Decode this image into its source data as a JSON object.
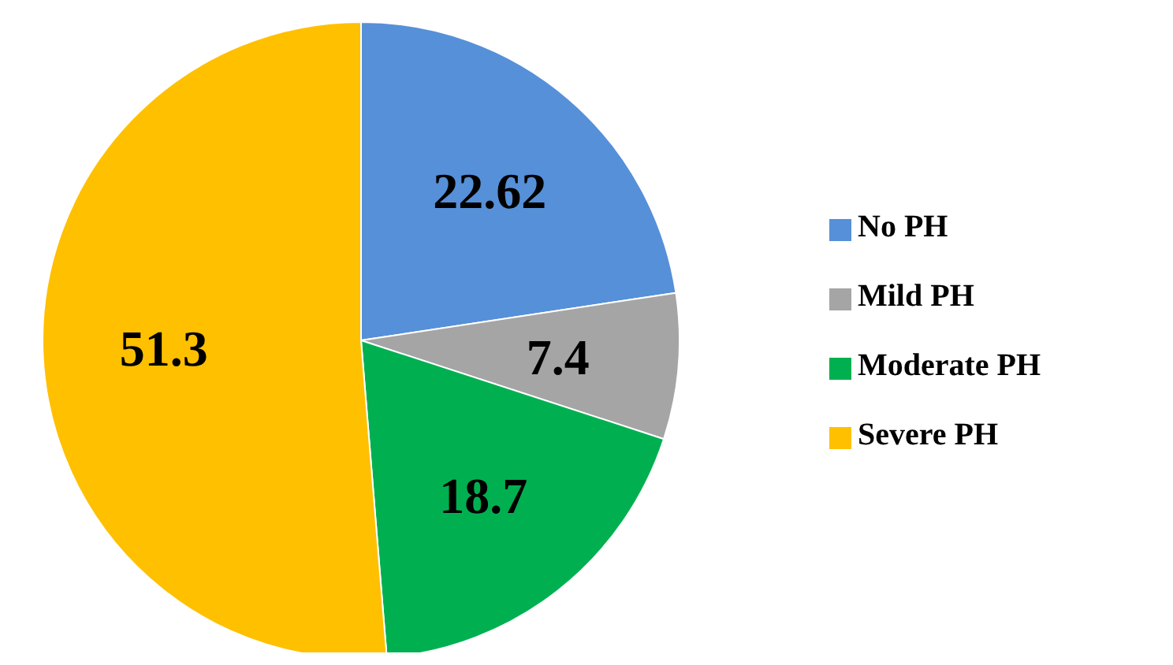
{
  "chart_data": {
    "type": "pie",
    "categories": [
      "No PH",
      "Mild PH",
      "Moderate PH",
      "Severe PH"
    ],
    "values": [
      22.62,
      7.4,
      18.7,
      51.3
    ],
    "colors": [
      "#5690d8",
      "#a5a5a5",
      "#00b050",
      "#ffc000"
    ],
    "data_labels": true,
    "legend": "right"
  }
}
